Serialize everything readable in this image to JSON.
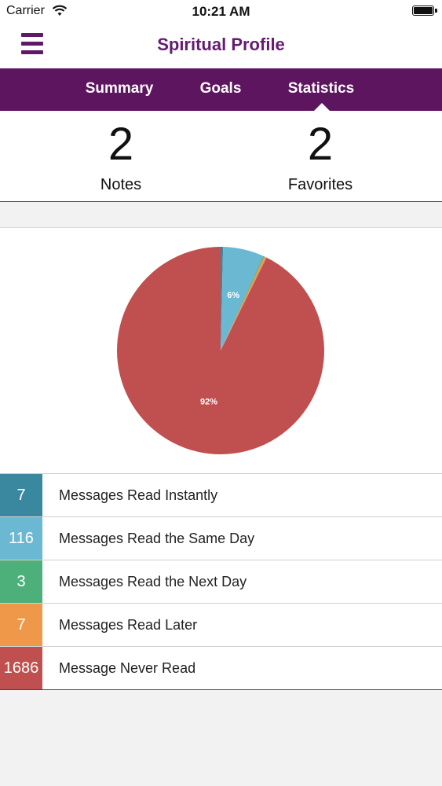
{
  "status_bar": {
    "carrier": "Carrier",
    "time": "10:21 AM"
  },
  "nav": {
    "title": "Spiritual Profile",
    "menu_icon": "hamburger-menu-icon"
  },
  "tabs": [
    {
      "label": "Summary"
    },
    {
      "label": "Goals"
    },
    {
      "label": "Statistics",
      "active": true
    }
  ],
  "counts": {
    "notes": {
      "value": "2",
      "label": "Notes"
    },
    "favorites": {
      "value": "2",
      "label": "Favorites"
    }
  },
  "chart_data": {
    "type": "pie",
    "title": "",
    "slices": [
      {
        "label": "Messages Read Instantly",
        "value": 7,
        "color": "#3a88a0"
      },
      {
        "label": "Messages Read the Same Day",
        "value": 116,
        "color": "#6bb8d3"
      },
      {
        "label": "Messages Read the Next Day",
        "value": 3,
        "color": "#4db07b"
      },
      {
        "label": "Messages Read Later",
        "value": 7,
        "color": "#f0984a"
      },
      {
        "label": "Message Never Read",
        "value": 1686,
        "color": "#c0504f"
      }
    ],
    "data_labels": [
      {
        "slice": 1,
        "text": "6%"
      },
      {
        "slice": 4,
        "text": "92%"
      }
    ]
  },
  "stats": [
    {
      "count": "7",
      "label": "Messages Read Instantly",
      "color": "#3a88a0"
    },
    {
      "count": "116",
      "label": "Messages Read the Same Day",
      "color": "#6bb8d3"
    },
    {
      "count": "3",
      "label": "Messages Read the Next Day",
      "color": "#4db07b"
    },
    {
      "count": "7",
      "label": "Messages Read Later",
      "color": "#f0984a"
    },
    {
      "count": "1686",
      "label": "Message Never Read",
      "color": "#c0504f"
    }
  ]
}
